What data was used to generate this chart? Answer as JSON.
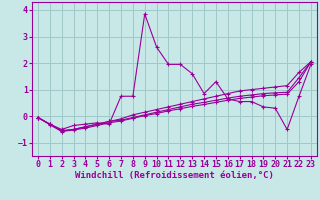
{
  "background_color": "#c8e8e8",
  "grid_color": "#a0c8c8",
  "line_color": "#990099",
  "xlabel": "Windchill (Refroidissement éolien,°C)",
  "xlabel_fontsize": 6.5,
  "tick_fontsize": 6.0,
  "xlim": [
    -0.5,
    23.5
  ],
  "ylim": [
    -1.5,
    4.3
  ],
  "yticks": [
    -1,
    0,
    1,
    2,
    3,
    4
  ],
  "xticks": [
    0,
    1,
    2,
    3,
    4,
    5,
    6,
    7,
    8,
    9,
    10,
    11,
    12,
    13,
    14,
    15,
    16,
    17,
    18,
    19,
    20,
    21,
    22,
    23
  ],
  "series": [
    {
      "x": [
        0,
        1,
        2,
        3,
        4,
        5,
        6,
        7,
        8,
        9,
        10,
        11,
        12,
        13,
        14,
        15,
        16,
        17,
        18,
        19,
        20,
        21,
        22,
        23
      ],
      "y": [
        -0.05,
        -0.3,
        -0.5,
        -0.35,
        -0.3,
        -0.25,
        -0.3,
        0.75,
        0.75,
        3.85,
        2.6,
        1.95,
        1.95,
        1.6,
        0.85,
        1.3,
        0.65,
        0.55,
        0.55,
        0.35,
        0.3,
        -0.5,
        0.75,
        1.95
      ]
    },
    {
      "x": [
        0,
        1,
        2,
        3,
        4,
        5,
        6,
        7,
        8,
        9,
        10,
        11,
        12,
        13,
        14,
        15,
        16,
        17,
        18,
        19,
        20,
        21,
        22,
        23
      ],
      "y": [
        -0.05,
        -0.3,
        -0.55,
        -0.5,
        -0.4,
        -0.3,
        -0.2,
        -0.1,
        0.05,
        0.15,
        0.25,
        0.35,
        0.45,
        0.55,
        0.65,
        0.75,
        0.85,
        0.95,
        1.0,
        1.05,
        1.1,
        1.15,
        1.65,
        2.05
      ]
    },
    {
      "x": [
        0,
        1,
        2,
        3,
        4,
        5,
        6,
        7,
        8,
        9,
        10,
        11,
        12,
        13,
        14,
        15,
        16,
        17,
        18,
        19,
        20,
        21,
        22,
        23
      ],
      "y": [
        -0.05,
        -0.3,
        -0.55,
        -0.5,
        -0.4,
        -0.3,
        -0.2,
        -0.15,
        -0.05,
        0.05,
        0.15,
        0.25,
        0.35,
        0.45,
        0.52,
        0.6,
        0.68,
        0.75,
        0.8,
        0.85,
        0.88,
        0.9,
        1.45,
        2.05
      ]
    },
    {
      "x": [
        0,
        1,
        2,
        3,
        4,
        5,
        6,
        7,
        8,
        9,
        10,
        11,
        12,
        13,
        14,
        15,
        16,
        17,
        18,
        19,
        20,
        21,
        22,
        23
      ],
      "y": [
        -0.05,
        -0.32,
        -0.58,
        -0.52,
        -0.45,
        -0.35,
        -0.25,
        -0.18,
        -0.08,
        0.02,
        0.1,
        0.2,
        0.28,
        0.37,
        0.44,
        0.52,
        0.6,
        0.67,
        0.72,
        0.77,
        0.8,
        0.83,
        1.3,
        2.05
      ]
    }
  ]
}
